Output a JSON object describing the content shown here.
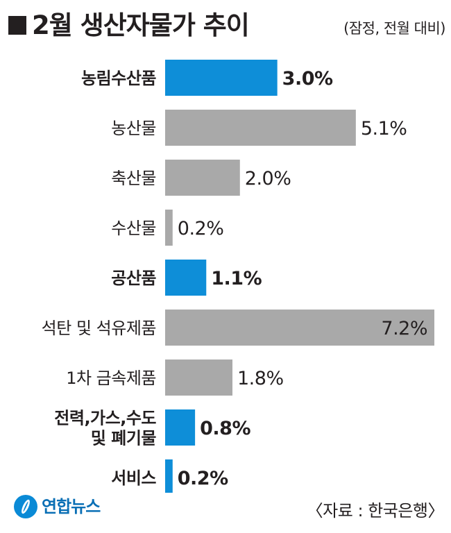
{
  "title": "2월 생산자물가 추이",
  "subtitle": "(잠정, 전월 대비)",
  "footer": {
    "logo_text": "연합뉴스",
    "source": "〈자료 : 한국은행〉"
  },
  "colors": {
    "primary": "#0e8ed8",
    "secondary": "#a9a9a9",
    "text": "#231f20"
  },
  "chart_data": {
    "type": "bar",
    "orientation": "horizontal",
    "title": "2월 생산자물가 추이",
    "subtitle": "(잠정, 전월 대비)",
    "unit": "%",
    "categories": [
      [
        "농림수산품"
      ],
      [
        "농산물"
      ],
      [
        "축산물"
      ],
      [
        "수산물"
      ],
      [
        "공산품"
      ],
      [
        "석탄 및 석유제품"
      ],
      [
        "1차 금속제품"
      ],
      [
        "전력,가스,수도",
        "및 폐기물"
      ],
      [
        "서비스"
      ]
    ],
    "values": [
      3.0,
      5.1,
      2.0,
      0.2,
      1.1,
      7.2,
      1.8,
      0.8,
      0.2
    ],
    "value_labels": [
      "3.0%",
      "5.1%",
      "2.0%",
      "0.2%",
      "1.1%",
      "7.2%",
      "1.8%",
      "0.8%",
      "0.2%"
    ],
    "is_group": [
      true,
      false,
      false,
      false,
      true,
      false,
      false,
      true,
      true
    ],
    "xlim": [
      0,
      7.2
    ],
    "grid": false,
    "legend": "none"
  }
}
